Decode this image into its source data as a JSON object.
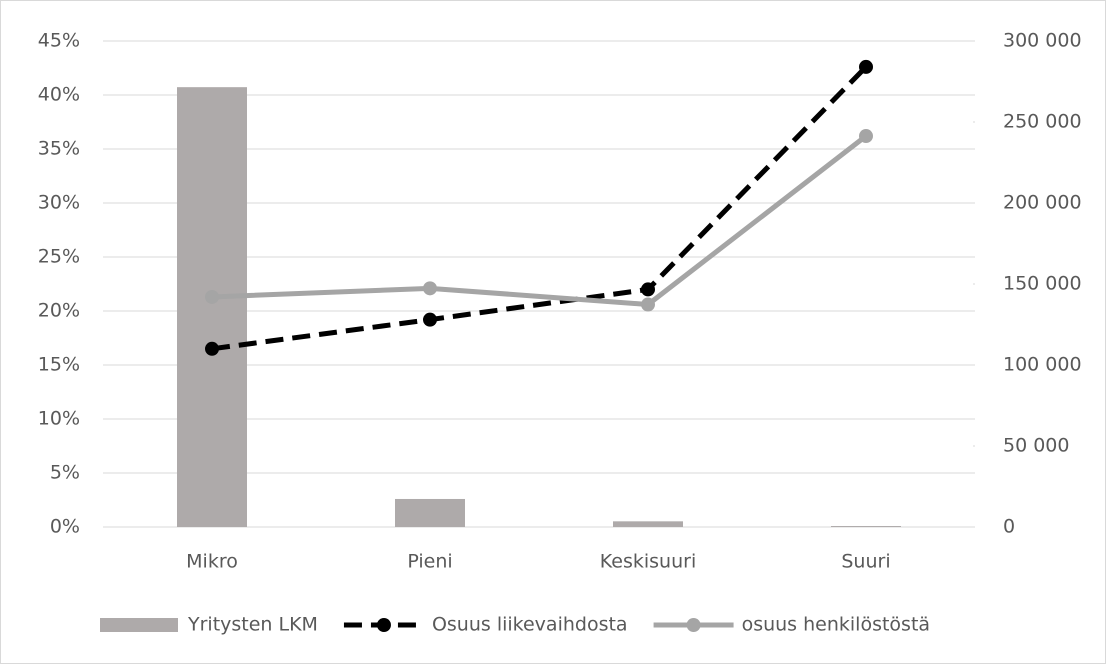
{
  "chart_data": {
    "type": "combo",
    "categories": [
      "Mikro",
      "Pieni",
      "Keskisuuri",
      "Suuri"
    ],
    "series": [
      {
        "name": "Yritysten LKM",
        "type": "bar",
        "axis": "y2",
        "color": "#aeaaaa",
        "values": [
          271500,
          17300,
          3500,
          600
        ]
      },
      {
        "name": "Osuus liikevaihdosta",
        "type": "line",
        "line_style": "dashed",
        "color": "#000000",
        "values": [
          16.5,
          19.2,
          22.0,
          42.6
        ]
      },
      {
        "name": "osuus henkilöstöstä",
        "type": "line",
        "line_style": "solid",
        "color": "#a5a5a5",
        "values": [
          21.3,
          22.1,
          20.6,
          36.2
        ]
      }
    ],
    "ylim": [
      0,
      45
    ],
    "yticks": [
      {
        "value": 0,
        "label": "0%"
      },
      {
        "value": 5,
        "label": "5%"
      },
      {
        "value": 10,
        "label": "10%"
      },
      {
        "value": 15,
        "label": "15%"
      },
      {
        "value": 20,
        "label": "20%"
      },
      {
        "value": 25,
        "label": "25%"
      },
      {
        "value": 30,
        "label": "30%"
      },
      {
        "value": 35,
        "label": "35%"
      },
      {
        "value": 40,
        "label": "40%"
      },
      {
        "value": 45,
        "label": "45%"
      }
    ],
    "y2lim": [
      0,
      300000
    ],
    "y2ticks": [
      0,
      {
        "value": 50000,
        "label": "50 000"
      },
      {
        "value": 100000,
        "label": "100 000"
      },
      {
        "value": 150000,
        "label": "150 000"
      },
      {
        "value": 200000,
        "label": "200 000"
      },
      {
        "value": 250000,
        "label": "250 000"
      },
      {
        "value": 300000,
        "label": "300 000"
      }
    ],
    "grid": true,
    "legend": "bottom"
  }
}
